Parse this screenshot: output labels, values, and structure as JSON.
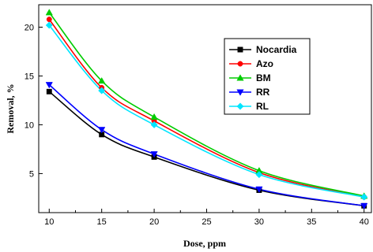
{
  "chart_data": {
    "type": "scatter",
    "title": "",
    "xlabel": "Dose, ppm",
    "ylabel": "Removal, %",
    "xlim": [
      9,
      40.7
    ],
    "ylim": [
      1,
      22.3
    ],
    "xticks": [
      10,
      15,
      20,
      25,
      30,
      35,
      40
    ],
    "yticks": [
      5,
      10,
      15,
      20
    ],
    "grid": false,
    "legend_position": "top-right",
    "x": [
      10,
      15,
      20,
      30,
      40
    ],
    "series": [
      {
        "name": "Nocardia",
        "color": "#000000",
        "marker": "square",
        "values": [
          13.4,
          9.0,
          6.7,
          3.3,
          1.7
        ]
      },
      {
        "name": "Azo",
        "color": "#ff0000",
        "marker": "circle",
        "values": [
          20.8,
          13.8,
          10.4,
          5.1,
          2.6
        ]
      },
      {
        "name": "BM",
        "color": "#00cc00",
        "marker": "triangle-up",
        "values": [
          21.5,
          14.5,
          10.8,
          5.3,
          2.7
        ]
      },
      {
        "name": "RR",
        "color": "#0000ff",
        "marker": "triangle-down",
        "values": [
          14.1,
          9.5,
          7.0,
          3.4,
          1.7
        ]
      },
      {
        "name": "RL",
        "color": "#00e5ff",
        "marker": "diamond",
        "values": [
          20.2,
          13.5,
          10.0,
          4.9,
          2.6
        ]
      }
    ]
  }
}
